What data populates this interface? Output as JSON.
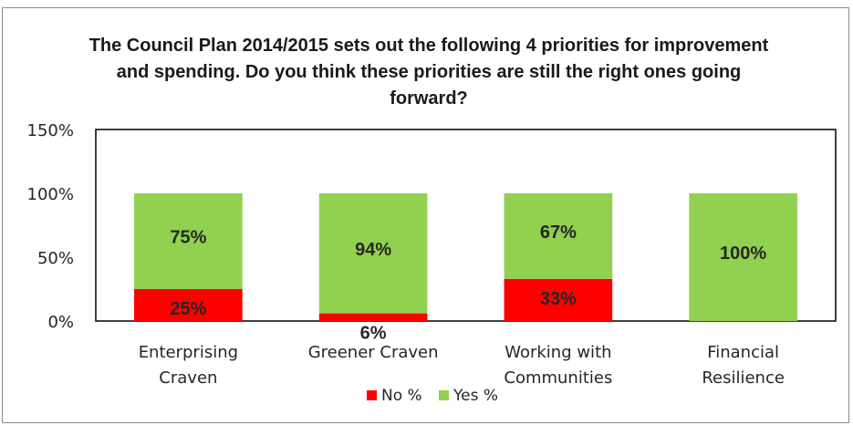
{
  "chart_data": {
    "type": "bar",
    "stacked": true,
    "title": "The Council Plan 2014/2015 sets out the following 4 priorities for improvement and spending.  Do you think these priorities are still the right ones going forward?",
    "categories": [
      [
        "Enterprising",
        "Craven"
      ],
      [
        "Greener Craven"
      ],
      [
        "Working with",
        "Communities"
      ],
      [
        "Financial",
        "Resilience"
      ]
    ],
    "series": [
      {
        "name": "No %",
        "color": "#ff0000",
        "values": [
          25,
          6,
          33,
          0
        ],
        "labels": [
          "25%",
          "6%",
          "33%",
          ""
        ]
      },
      {
        "name": "Yes %",
        "color": "#92d050",
        "values": [
          75,
          94,
          67,
          100
        ],
        "labels": [
          "75%",
          "94%",
          "67%",
          "100%"
        ]
      }
    ],
    "ylim": [
      0,
      150
    ],
    "yticks": [
      0,
      50,
      100,
      150
    ],
    "ytick_labels": [
      "0%",
      "50%",
      "100%",
      "150%"
    ],
    "xlabel": "",
    "ylabel": "",
    "grid": false,
    "legend": "bottom"
  }
}
